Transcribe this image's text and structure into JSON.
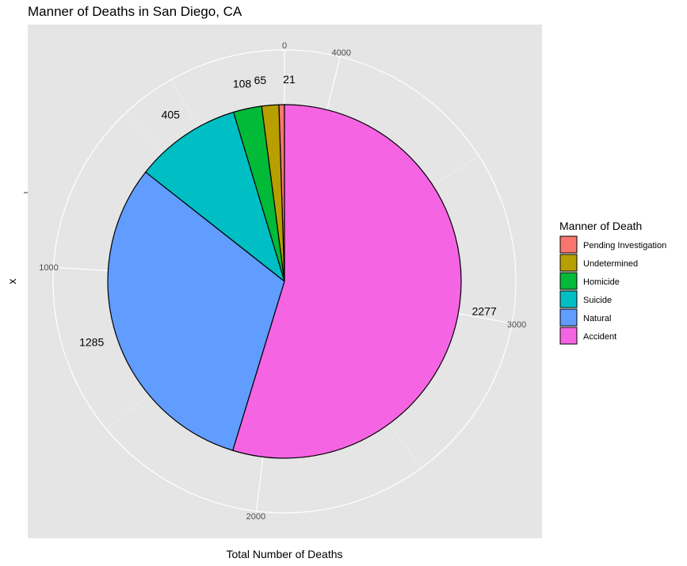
{
  "chart_data": {
    "type": "pie",
    "title": "Manner of Deaths in San Diego, CA",
    "xlabel": "Total Number of Deaths",
    "ylabel": "x",
    "legend_title": "Manner of Death",
    "legend_placement": "right",
    "slices": [
      {
        "name": "Pending Investigation",
        "value": 21,
        "label": "21",
        "color": "#F8766D"
      },
      {
        "name": "Undetermined",
        "value": 65,
        "label": "65",
        "color": "#B79F00"
      },
      {
        "name": "Homicide",
        "value": 108,
        "label": "108",
        "color": "#00BA38"
      },
      {
        "name": "Suicide",
        "value": 405,
        "label": "405",
        "color": "#00BFC4"
      },
      {
        "name": "Natural",
        "value": 1285,
        "label": "1285",
        "color": "#619CFF"
      },
      {
        "name": "Accident",
        "value": 2277,
        "label": "2277",
        "color": "#F564E3"
      }
    ],
    "radial_ticks": [
      "0",
      "1000",
      "2000",
      "3000",
      "4000"
    ],
    "grid": true,
    "panel_background": "#E5E5E5"
  }
}
